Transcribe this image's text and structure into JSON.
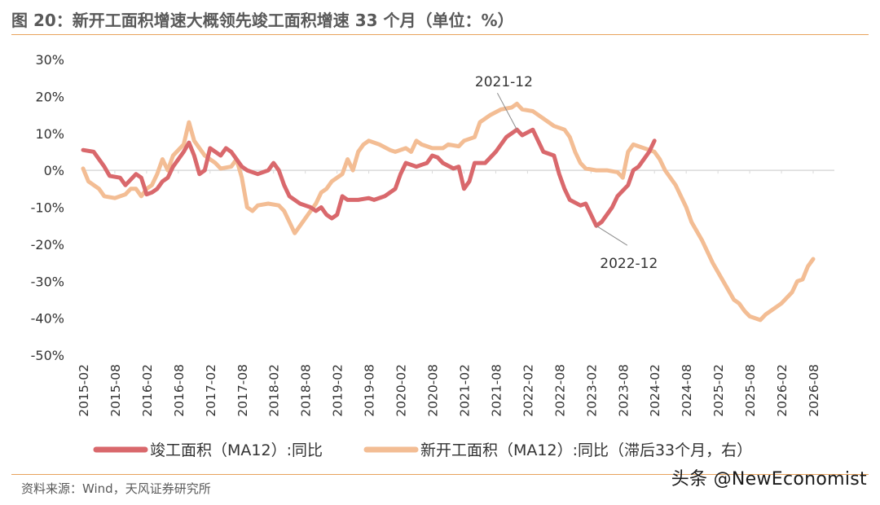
{
  "header": {
    "title": "图 20：新开工面积增速大概领先竣工面积增速 33 个月（单位：%）"
  },
  "footer": {
    "source": "资料来源：Wind，天风证券研究所",
    "watermark": "头条 @NewEconomist"
  },
  "colors": {
    "completion": "#d9686c",
    "new_starts": "#f3bd94",
    "axis": "#d9d9d9",
    "rule": "#e8a25c"
  },
  "chart_data": {
    "type": "line",
    "title": "新开工面积增速大概领先竣工面积增速 33 个月（单位：%）",
    "ylim": [
      -50,
      30
    ],
    "y_ticks": [
      "30%",
      "20%",
      "10%",
      "0%",
      "-10%",
      "-20%",
      "-30%",
      "-40%",
      "-50%"
    ],
    "x_range": [
      "2015-02",
      "2026-08"
    ],
    "x_ticks": [
      "2015-02",
      "2015-08",
      "2016-02",
      "2016-08",
      "2017-02",
      "2017-08",
      "2018-02",
      "2018-08",
      "2019-02",
      "2019-08",
      "2020-02",
      "2020-08",
      "2021-02",
      "2021-08",
      "2022-02",
      "2022-08",
      "2023-02",
      "2023-08",
      "2024-02",
      "2024-08",
      "2025-02",
      "2025-08",
      "2026-02",
      "2026-08"
    ],
    "legend": "bottom",
    "series": [
      {
        "name": "竣工面积（MA12）:同比",
        "color": "#d9686c",
        "points": [
          [
            "2015-02",
            5.5
          ],
          [
            "2015-04",
            5
          ],
          [
            "2015-06",
            1
          ],
          [
            "2015-07",
            -1.5
          ],
          [
            "2015-09",
            -2
          ],
          [
            "2015-10",
            -4
          ],
          [
            "2015-12",
            -1
          ],
          [
            "2016-01",
            -2
          ],
          [
            "2016-02",
            -6.5
          ],
          [
            "2016-03",
            -6
          ],
          [
            "2016-04",
            -5
          ],
          [
            "2016-05",
            -3
          ],
          [
            "2016-06",
            -2
          ],
          [
            "2016-07",
            1
          ],
          [
            "2016-09",
            5
          ],
          [
            "2016-10",
            7.5
          ],
          [
            "2016-11",
            4
          ],
          [
            "2016-12",
            -1
          ],
          [
            "2017-01",
            0
          ],
          [
            "2017-02",
            6
          ],
          [
            "2017-03",
            5
          ],
          [
            "2017-04",
            4
          ],
          [
            "2017-05",
            6
          ],
          [
            "2017-06",
            5
          ],
          [
            "2017-07",
            3
          ],
          [
            "2017-08",
            1
          ],
          [
            "2017-09",
            0
          ],
          [
            "2017-11",
            -1
          ],
          [
            "2018-01",
            0
          ],
          [
            "2018-02",
            2
          ],
          [
            "2018-03",
            0
          ],
          [
            "2018-04",
            -4
          ],
          [
            "2018-05",
            -7
          ],
          [
            "2018-07",
            -9
          ],
          [
            "2018-09",
            -10
          ],
          [
            "2018-10",
            -11
          ],
          [
            "2018-11",
            -10
          ],
          [
            "2018-12",
            -12
          ],
          [
            "2019-01",
            -13
          ],
          [
            "2019-02",
            -12
          ],
          [
            "2019-03",
            -7
          ],
          [
            "2019-04",
            -8
          ],
          [
            "2019-06",
            -8
          ],
          [
            "2019-08",
            -7.5
          ],
          [
            "2019-09",
            -8
          ],
          [
            "2019-11",
            -7
          ],
          [
            "2020-01",
            -5
          ],
          [
            "2020-02",
            -1
          ],
          [
            "2020-03",
            2
          ],
          [
            "2020-05",
            1
          ],
          [
            "2020-06",
            1.5
          ],
          [
            "2020-07",
            2
          ],
          [
            "2020-08",
            4
          ],
          [
            "2020-09",
            3.5
          ],
          [
            "2020-10",
            2
          ],
          [
            "2020-12",
            0.5
          ],
          [
            "2021-01",
            1
          ],
          [
            "2021-02",
            -5
          ],
          [
            "2021-03",
            -3
          ],
          [
            "2021-04",
            2
          ],
          [
            "2021-06",
            2
          ],
          [
            "2021-08",
            5
          ],
          [
            "2021-10",
            9
          ],
          [
            "2021-12",
            11
          ],
          [
            "2022-01",
            9.5
          ],
          [
            "2022-03",
            11
          ],
          [
            "2022-04",
            8
          ],
          [
            "2022-05",
            5
          ],
          [
            "2022-07",
            4
          ],
          [
            "2022-08",
            -1
          ],
          [
            "2022-09",
            -5
          ],
          [
            "2022-10",
            -8
          ],
          [
            "2022-12",
            -9.5
          ],
          [
            "2023-01",
            -9
          ],
          [
            "2023-02",
            -12
          ],
          [
            "2023-03",
            -15
          ],
          [
            "2023-04",
            -14
          ],
          [
            "2023-05",
            -12
          ],
          [
            "2023-06",
            -10
          ],
          [
            "2023-07",
            -7
          ],
          [
            "2023-09",
            -4
          ],
          [
            "2023-10",
            0
          ],
          [
            "2023-11",
            1
          ],
          [
            "2023-12",
            3
          ],
          [
            "2024-01",
            5
          ],
          [
            "2024-02",
            8
          ]
        ]
      },
      {
        "name": "新开工面积（MA12）:同比（滞后33个月，右）",
        "color": "#f3bd94",
        "points": [
          [
            "2015-02",
            0.5
          ],
          [
            "2015-03",
            -3
          ],
          [
            "2015-05",
            -5
          ],
          [
            "2015-06",
            -7
          ],
          [
            "2015-08",
            -7.5
          ],
          [
            "2015-10",
            -6.5
          ],
          [
            "2015-11",
            -5
          ],
          [
            "2015-12",
            -5
          ],
          [
            "2016-01",
            -7
          ],
          [
            "2016-02",
            -5
          ],
          [
            "2016-03",
            -4
          ],
          [
            "2016-04",
            -1
          ],
          [
            "2016-05",
            3
          ],
          [
            "2016-06",
            0
          ],
          [
            "2016-07",
            4
          ],
          [
            "2016-09",
            7
          ],
          [
            "2016-10",
            13
          ],
          [
            "2016-11",
            8
          ],
          [
            "2016-12",
            6
          ],
          [
            "2017-01",
            4
          ],
          [
            "2017-03",
            2
          ],
          [
            "2017-04",
            0.5
          ],
          [
            "2017-06",
            1
          ],
          [
            "2017-07",
            3
          ],
          [
            "2017-08",
            -2
          ],
          [
            "2017-09",
            -10
          ],
          [
            "2017-10",
            -11
          ],
          [
            "2017-11",
            -9.5
          ],
          [
            "2018-01",
            -9
          ],
          [
            "2018-03",
            -9.5
          ],
          [
            "2018-04",
            -11
          ],
          [
            "2018-05",
            -14
          ],
          [
            "2018-06",
            -17
          ],
          [
            "2018-07",
            -15
          ],
          [
            "2018-09",
            -11
          ],
          [
            "2018-10",
            -9
          ],
          [
            "2018-11",
            -6
          ],
          [
            "2018-12",
            -5
          ],
          [
            "2019-01",
            -3
          ],
          [
            "2019-03",
            -1
          ],
          [
            "2019-04",
            3
          ],
          [
            "2019-05",
            0
          ],
          [
            "2019-06",
            5
          ],
          [
            "2019-07",
            7
          ],
          [
            "2019-08",
            8
          ],
          [
            "2019-10",
            7
          ],
          [
            "2019-12",
            5.5
          ],
          [
            "2020-01",
            5
          ],
          [
            "2020-03",
            6
          ],
          [
            "2020-04",
            5
          ],
          [
            "2020-05",
            8
          ],
          [
            "2020-06",
            7
          ],
          [
            "2020-08",
            6
          ],
          [
            "2020-10",
            6
          ],
          [
            "2020-11",
            7
          ],
          [
            "2021-01",
            6.5
          ],
          [
            "2021-02",
            8
          ],
          [
            "2021-04",
            9
          ],
          [
            "2021-05",
            13
          ],
          [
            "2021-07",
            15
          ],
          [
            "2021-09",
            16.5
          ],
          [
            "2021-11",
            17
          ],
          [
            "2021-12",
            18
          ],
          [
            "2022-01",
            16.5
          ],
          [
            "2022-03",
            16
          ],
          [
            "2022-05",
            14
          ],
          [
            "2022-07",
            12
          ],
          [
            "2022-09",
            11
          ],
          [
            "2022-10",
            9
          ],
          [
            "2022-11",
            5
          ],
          [
            "2022-12",
            2
          ],
          [
            "2023-01",
            0.5
          ],
          [
            "2023-03",
            0
          ],
          [
            "2023-05",
            0
          ],
          [
            "2023-07",
            -0.5
          ],
          [
            "2023-08",
            -2
          ],
          [
            "2023-09",
            5
          ],
          [
            "2023-10",
            7
          ],
          [
            "2023-12",
            6
          ],
          [
            "2024-02",
            5
          ],
          [
            "2024-03",
            3
          ],
          [
            "2024-04",
            0
          ],
          [
            "2024-05",
            -2
          ],
          [
            "2024-06",
            -4
          ],
          [
            "2024-07",
            -7
          ],
          [
            "2024-08",
            -10
          ],
          [
            "2024-09",
            -14
          ],
          [
            "2024-11",
            -19
          ],
          [
            "2025-01",
            -25
          ],
          [
            "2025-03",
            -30
          ],
          [
            "2025-05",
            -35
          ],
          [
            "2025-06",
            -36
          ],
          [
            "2025-07",
            -38
          ],
          [
            "2025-08",
            -39.5
          ],
          [
            "2025-09",
            -40
          ],
          [
            "2025-10",
            -40.5
          ],
          [
            "2025-11",
            -39
          ],
          [
            "2025-12",
            -38
          ],
          [
            "2026-02",
            -36
          ],
          [
            "2026-04",
            -33
          ],
          [
            "2026-05",
            -30
          ],
          [
            "2026-06",
            -29.5
          ],
          [
            "2026-07",
            -26
          ],
          [
            "2026-08",
            -24
          ]
        ]
      }
    ],
    "annotations": [
      {
        "label": "2021-12",
        "target_series": 0,
        "target_x": "2021-12",
        "target_y": 11,
        "text_position": "above"
      },
      {
        "label": "2022-12",
        "target_series": 0,
        "target_x": "2023-03",
        "target_y": -15,
        "text_position": "below"
      }
    ]
  }
}
